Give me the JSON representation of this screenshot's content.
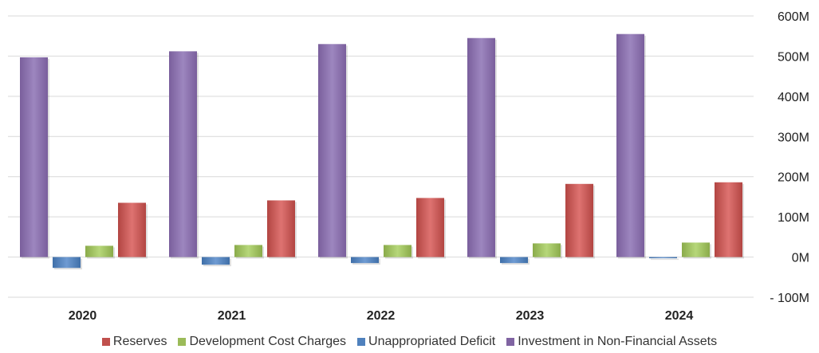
{
  "chart_data": {
    "type": "bar",
    "categories": [
      "2020",
      "2021",
      "2022",
      "2023",
      "2024"
    ],
    "series": [
      {
        "name": "Investment in Non-Financial Assets",
        "color": "#8064a2",
        "values": [
          497,
          512,
          530,
          545,
          555
        ]
      },
      {
        "name": "Unappropriated Deficit",
        "color": "#4f81bd",
        "values": [
          -27,
          -19,
          -15,
          -15,
          -3
        ]
      },
      {
        "name": "Development Cost Charges",
        "color": "#9bbb59",
        "values": [
          28,
          30,
          30,
          34,
          36
        ]
      },
      {
        "name": "Reserves",
        "color": "#c0504d",
        "values": [
          135,
          141,
          147,
          182,
          186
        ]
      }
    ],
    "legend_order": [
      "Reserves",
      "Development Cost Charges",
      "Unappropriated Deficit",
      "Investment in Non-Financial Assets"
    ],
    "y_ticks": [
      {
        "value": 600,
        "label": "600M"
      },
      {
        "value": 500,
        "label": "500M"
      },
      {
        "value": 400,
        "label": "400M"
      },
      {
        "value": 300,
        "label": "300M"
      },
      {
        "value": 200,
        "label": "200M"
      },
      {
        "value": 100,
        "label": "100M"
      },
      {
        "value": 0,
        "label": "0M"
      },
      {
        "value": -100,
        "label": "- 100M"
      }
    ],
    "ylim": [
      -100,
      600
    ],
    "y_axis_position": "right",
    "grid": true,
    "legend_position": "bottom"
  }
}
